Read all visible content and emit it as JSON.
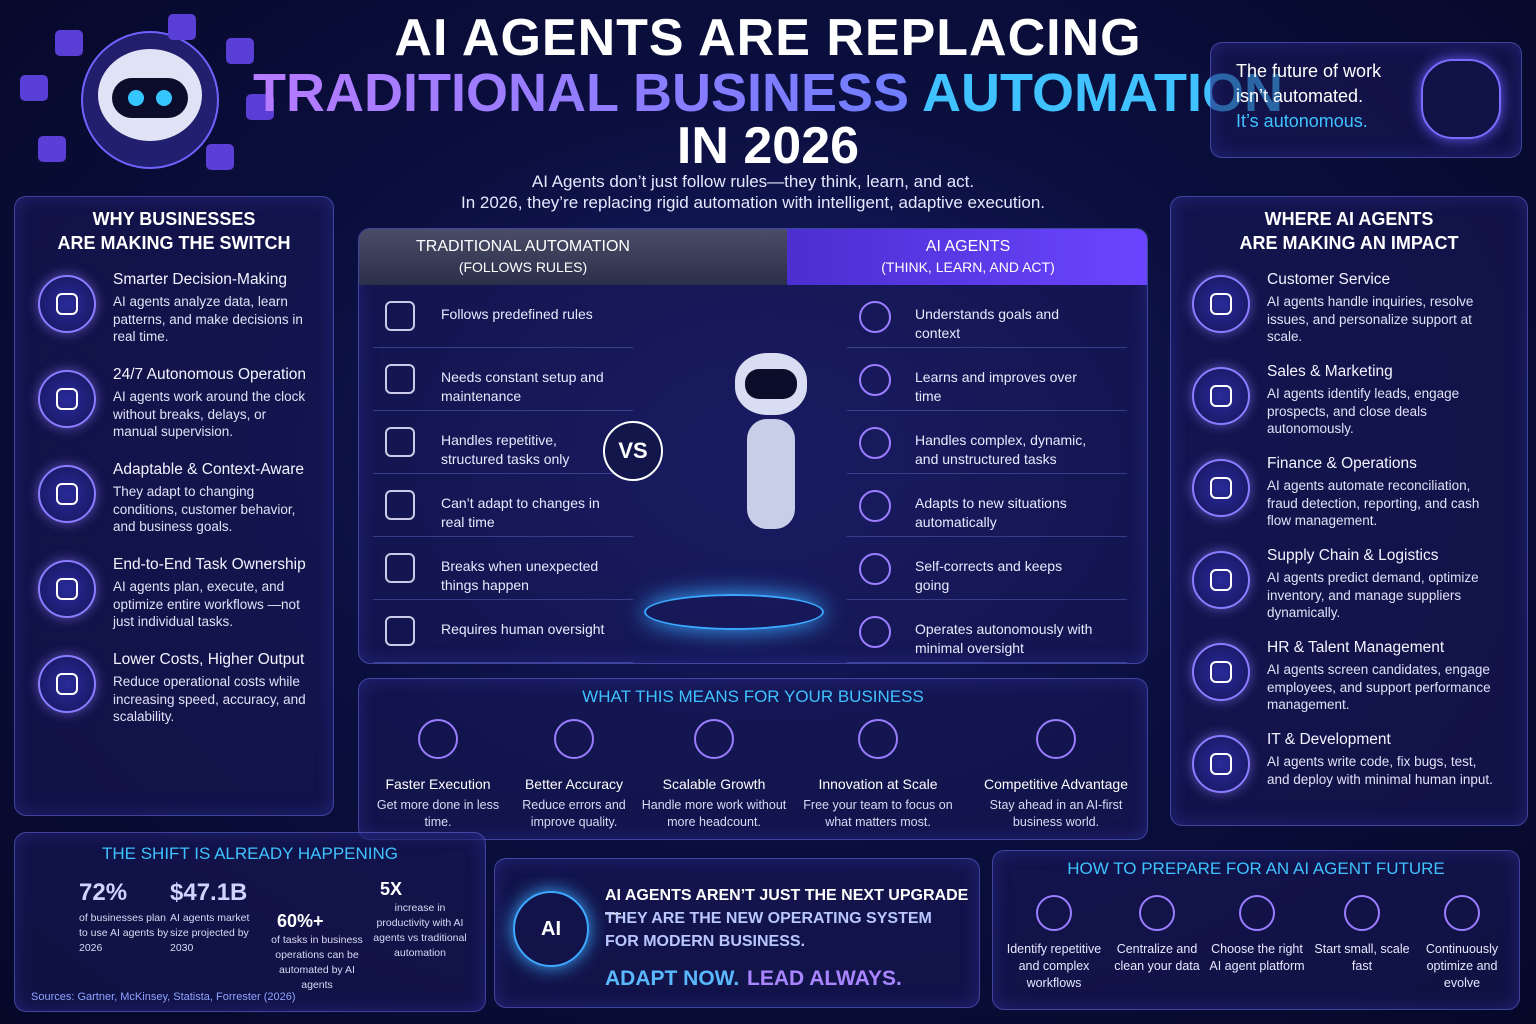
{
  "header": {
    "title_line1": "AI AGENTS ARE REPLACING",
    "title_line2a": "TRADITIONAL BUSINESS",
    "title_line2b": "AUTOMATION",
    "title_line3": "IN 2026",
    "subtitle": [
      "AI Agents don’t just follow rules—they think, learn, and act.",
      "In 2026, they’re replacing rigid automation with intelligent, adaptive execution."
    ]
  },
  "quote": {
    "lines": [
      "The future of work",
      "isn’t automated.",
      "It’s autonomous."
    ]
  },
  "why": {
    "title": [
      "WHY BUSINESSES",
      "ARE MAKING THE SWITCH"
    ],
    "items": [
      {
        "title": "Smarter Decision-Making",
        "text": "AI agents analyze data, learn patterns, and make decisions in real time."
      },
      {
        "title": "24/7 Autonomous Operation",
        "text": "AI agents work around the clock without breaks, delays, or manual supervision."
      },
      {
        "title": "Adaptable & Context-Aware",
        "text": "They adapt to changing conditions, customer behavior, and business goals."
      },
      {
        "title": "End-to-End Task Ownership",
        "text": "AI agents plan, execute, and optimize entire workflows —not just individual tasks."
      },
      {
        "title": "Lower Costs, Higher Output",
        "text": "Reduce operational costs while increasing speed, accuracy, and scalability."
      }
    ]
  },
  "comparison": {
    "vs": "VS",
    "left": {
      "title": "TRADITIONAL AUTOMATION",
      "subtitle": "(FOLLOWS RULES)",
      "items": [
        "Follows predefined rules",
        "Needs constant setup and maintenance",
        "Handles repetitive, structured tasks only",
        "Can’t adapt to changes in real time",
        "Breaks when unexpected things happen",
        "Requires human oversight"
      ]
    },
    "right": {
      "title": "AI AGENTS",
      "subtitle": "(THINK, LEARN, AND ACT)",
      "items": [
        "Understands goals and context",
        "Learns and improves over time",
        "Handles complex, dynamic, and unstructured tasks",
        "Adapts to new situations automatically",
        "Self-corrects and keeps going",
        "Operates autonomously with minimal oversight"
      ]
    }
  },
  "means": {
    "title": "WHAT THIS MEANS FOR YOUR BUSINESS",
    "items": [
      {
        "title": "Faster Execution",
        "text": "Get more done in less time."
      },
      {
        "title": "Better Accuracy",
        "text": "Reduce errors and improve quality."
      },
      {
        "title": "Scalable Growth",
        "text": "Handle more work without more headcount."
      },
      {
        "title": "Innovation at Scale",
        "text": "Free your team to focus on what matters most."
      },
      {
        "title": "Competitive Advantage",
        "text": "Stay ahead in an AI-first business world."
      }
    ]
  },
  "impact": {
    "title": [
      "WHERE AI AGENTS",
      "ARE MAKING AN IMPACT"
    ],
    "items": [
      {
        "title": "Customer Service",
        "text": "AI agents handle inquiries, resolve issues, and personalize support at scale."
      },
      {
        "title": "Sales & Marketing",
        "text": "AI agents identify leads, engage prospects, and close deals autonomously."
      },
      {
        "title": "Finance & Operations",
        "text": "AI agents automate reconciliation, fraud detection, reporting, and cash flow management."
      },
      {
        "title": "Supply Chain & Logistics",
        "text": "AI agents predict demand, optimize inventory, and manage suppliers dynamically."
      },
      {
        "title": "HR & Talent Management",
        "text": "AI agents screen candidates, engage employees, and support performance management."
      },
      {
        "title": "IT & Development",
        "text": "AI agents write code, fix bugs, test, and deploy with minimal human input."
      }
    ]
  },
  "shift": {
    "title": "THE SHIFT IS ALREADY HAPPENING",
    "stats": [
      {
        "value": "72%",
        "label": "of businesses plan to use AI agents by 2026"
      },
      {
        "value": "$47.1B",
        "label": "AI agents market size projected by 2030"
      },
      {
        "value": "60%+",
        "label": "of tasks in business operations can be automated by AI agents"
      },
      {
        "value": "5X",
        "label": "increase in productivity with AI agents vs traditional automation"
      }
    ],
    "sources": "Sources: Gartner, McKinsey, Statista, Forrester (2026)"
  },
  "banner": {
    "icon": "AI",
    "lines": [
      "AI AGENTS AREN’T JUST THE NEXT UPGRADE—",
      "THEY ARE THE NEW OPERATING SYSTEM",
      "FOR MODERN BUSINESS."
    ],
    "cta": [
      "ADAPT NOW.",
      "LEAD ALWAYS."
    ]
  },
  "prepare": {
    "title": "HOW TO PREPARE FOR AN AI AGENT FUTURE",
    "items": [
      "Identify repetitive and complex workflows",
      "Centralize and clean your data",
      "Choose the right AI agent platform",
      "Start small, scale fast",
      "Continuously optimize and evolve"
    ]
  }
}
